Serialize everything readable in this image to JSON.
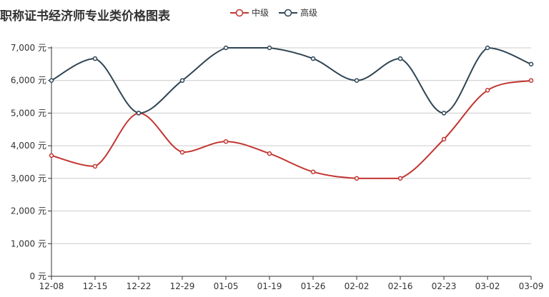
{
  "chart_data": {
    "type": "line",
    "title": "职称证书经济师专业类价格图表",
    "categories": [
      "12-08",
      "12-15",
      "12-22",
      "12-29",
      "01-05",
      "01-19",
      "01-26",
      "02-02",
      "02-16",
      "02-23",
      "03-02",
      "03-09"
    ],
    "series": [
      {
        "name": "中级",
        "color": "#c23531",
        "values": [
          3700,
          3370,
          5000,
          3800,
          4130,
          3760,
          3200,
          3000,
          3000,
          4200,
          5700,
          6000
        ]
      },
      {
        "name": "高级",
        "color": "#2f4554",
        "values": [
          6000,
          6670,
          5000,
          6000,
          7000,
          7000,
          6670,
          6000,
          6670,
          5000,
          7000,
          6500
        ]
      }
    ],
    "y_axis": {
      "min": 0,
      "max": 7000,
      "step": 1000,
      "unit": "元",
      "tick_labels": [
        "0 元",
        "1,000 元",
        "2,000 元",
        "3,000 元",
        "4,000 元",
        "5,000 元",
        "6,000 元",
        "7,000 元"
      ]
    },
    "grid": true,
    "legend": "top"
  }
}
